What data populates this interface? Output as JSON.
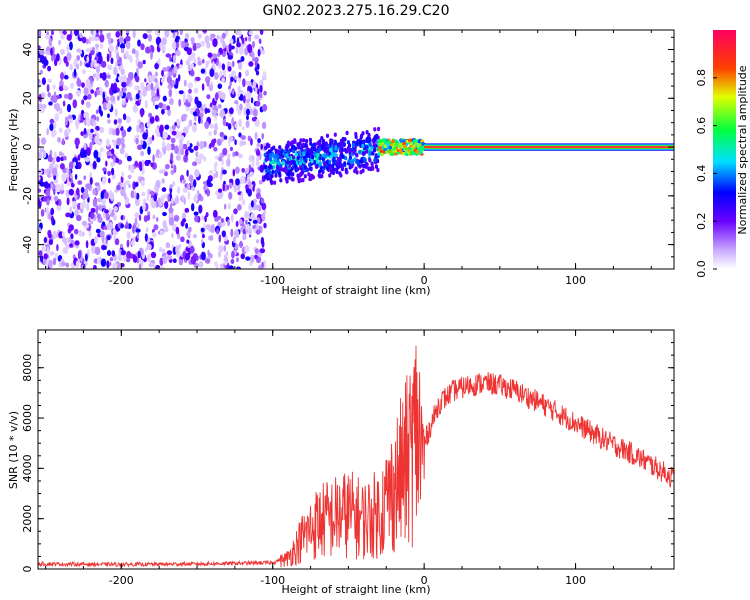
{
  "title": "GN02.2023.275.16.29.C20",
  "chart_data": [
    {
      "type": "heatmap",
      "xlabel": "Height of straight line (km)",
      "ylabel": "Frequency (Hz)",
      "xlim": [
        -255,
        165
      ],
      "ylim": [
        -50,
        48
      ],
      "xticks": [
        -200,
        -100,
        0,
        100
      ],
      "yticks": [
        -40,
        -20,
        0,
        20,
        40
      ],
      "colorbar": {
        "label": "Normalized spectral amplitude",
        "range": [
          0,
          1
        ],
        "ticks": [
          0.0,
          0.2,
          0.4,
          0.6,
          0.8
        ]
      },
      "regions": [
        {
          "x_range": [
            -255,
            -105
          ],
          "y_range": [
            -50,
            48
          ],
          "amplitude": 0.05,
          "pattern": "noise"
        },
        {
          "x_range": [
            -105,
            -30
          ],
          "y_range": [
            -15,
            5
          ],
          "amplitude": 0.35,
          "pattern": "rising-band"
        },
        {
          "x_range": [
            -30,
            0
          ],
          "y_range": [
            -3,
            3
          ],
          "amplitude": 0.8,
          "pattern": "narrow-band"
        },
        {
          "x_range": [
            0,
            165
          ],
          "y_range": [
            -1.5,
            1.5
          ],
          "amplitude": 0.97,
          "pattern": "carrier-line"
        }
      ]
    },
    {
      "type": "line",
      "xlabel": "Height of straight line (km)",
      "ylabel": "SNR (10 * v/v)",
      "xlim": [
        -255,
        165
      ],
      "ylim": [
        0,
        9500
      ],
      "xticks": [
        -200,
        -100,
        0,
        100
      ],
      "yticks": [
        0,
        2000,
        4000,
        6000,
        8000
      ],
      "color": "#ee3333",
      "x": [
        -255,
        -200,
        -150,
        -100,
        -90,
        -80,
        -70,
        -60,
        -50,
        -40,
        -30,
        -20,
        -10,
        -5,
        0,
        10,
        20,
        30,
        40,
        50,
        60,
        80,
        100,
        120,
        140,
        165
      ],
      "y": [
        200,
        180,
        200,
        250,
        500,
        1500,
        2200,
        2400,
        2600,
        2300,
        2600,
        3800,
        5200,
        6500,
        5000,
        6600,
        7100,
        7300,
        7400,
        7300,
        7100,
        6500,
        5800,
        5100,
        4500,
        3600
      ]
    }
  ]
}
